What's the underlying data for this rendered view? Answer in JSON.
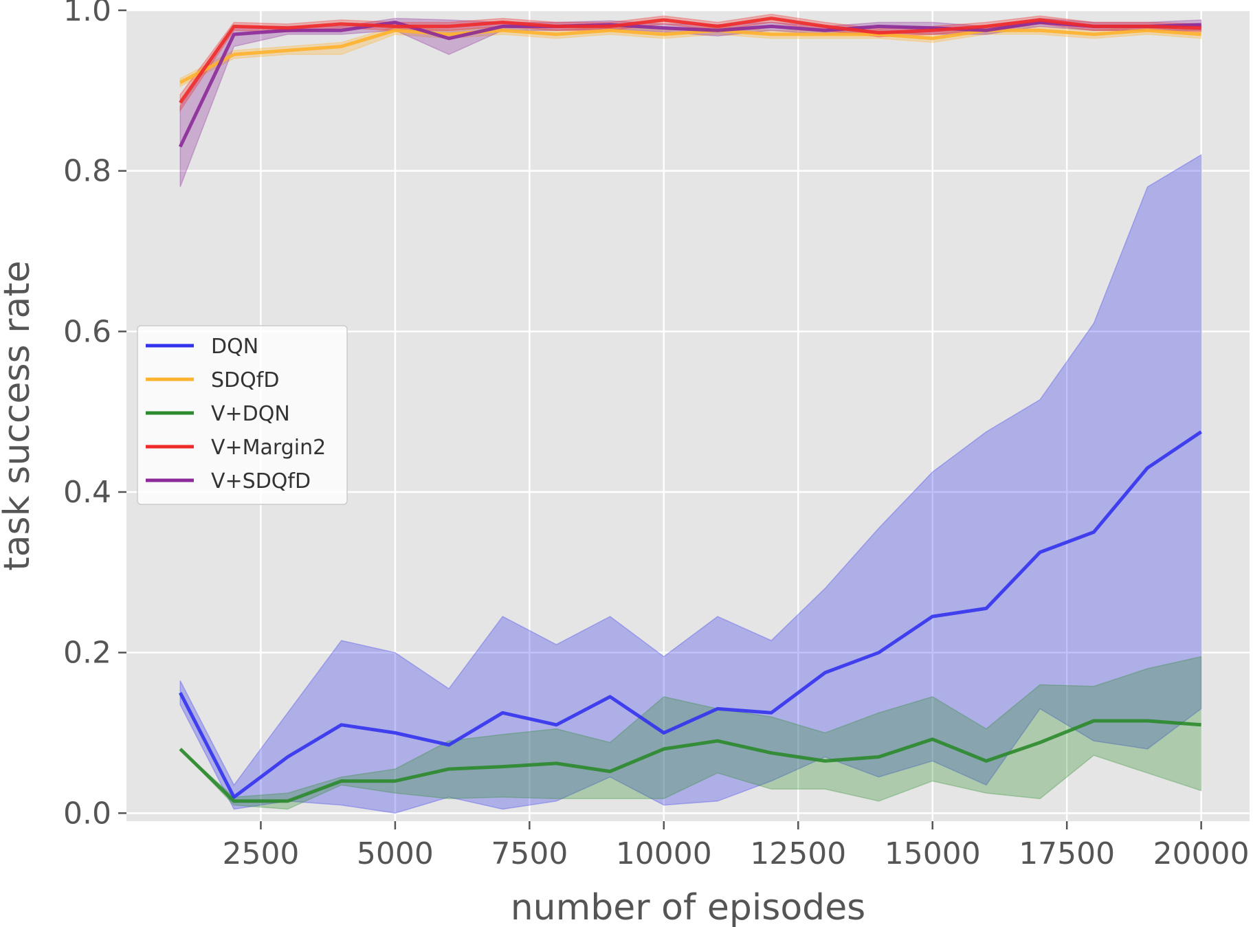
{
  "chart_data": {
    "type": "line",
    "title": "",
    "xlabel": "number of episodes",
    "ylabel": "task success rate",
    "xlim": [
      0,
      20900
    ],
    "ylim": [
      -0.01,
      1.0
    ],
    "grid": true,
    "background": "#e5e5e5",
    "legend_position": "center-left",
    "xticks": [
      2500,
      5000,
      7500,
      10000,
      12500,
      15000,
      17500,
      20000
    ],
    "xtick_labels": [
      "2500",
      "5000",
      "7500",
      "10000",
      "12500",
      "15000",
      "17500",
      "20000"
    ],
    "yticks": [
      0.0,
      0.2,
      0.4,
      0.6,
      0.8,
      1.0
    ],
    "ytick_labels": [
      "0.0",
      "0.2",
      "0.4",
      "0.6",
      "0.8",
      "1.0"
    ],
    "x": [
      1000,
      2000,
      3000,
      4000,
      5000,
      6000,
      7000,
      8000,
      9000,
      10000,
      11000,
      12000,
      13000,
      14000,
      15000,
      16000,
      17000,
      18000,
      19000,
      20000
    ],
    "series": [
      {
        "name": "DQN",
        "color": "#3333ee",
        "values": [
          0.15,
          0.02,
          0.07,
          0.11,
          0.1,
          0.085,
          0.125,
          0.11,
          0.145,
          0.1,
          0.13,
          0.125,
          0.175,
          0.2,
          0.245,
          0.255,
          0.325,
          0.35,
          0.43,
          0.475
        ],
        "lower": [
          0.135,
          0.005,
          0.015,
          0.01,
          0.0,
          0.02,
          0.005,
          0.015,
          0.045,
          0.01,
          0.015,
          0.04,
          0.07,
          0.045,
          0.065,
          0.035,
          0.13,
          0.09,
          0.08,
          0.13
        ],
        "upper": [
          0.165,
          0.035,
          0.125,
          0.215,
          0.2,
          0.155,
          0.245,
          0.21,
          0.245,
          0.195,
          0.245,
          0.215,
          0.28,
          0.355,
          0.425,
          0.475,
          0.515,
          0.61,
          0.78,
          0.82
        ]
      },
      {
        "name": "SDQfD",
        "color": "#ffb22e",
        "values": [
          0.91,
          0.945,
          0.95,
          0.955,
          0.975,
          0.97,
          0.975,
          0.97,
          0.975,
          0.97,
          0.975,
          0.97,
          0.97,
          0.97,
          0.965,
          0.975,
          0.975,
          0.97,
          0.975,
          0.97
        ],
        "lower": [
          0.905,
          0.94,
          0.945,
          0.945,
          0.97,
          0.965,
          0.97,
          0.965,
          0.97,
          0.965,
          0.97,
          0.965,
          0.965,
          0.965,
          0.96,
          0.97,
          0.97,
          0.965,
          0.97,
          0.965
        ],
        "upper": [
          0.915,
          0.95,
          0.955,
          0.96,
          0.98,
          0.975,
          0.98,
          0.975,
          0.98,
          0.975,
          0.98,
          0.975,
          0.975,
          0.975,
          0.97,
          0.98,
          0.98,
          0.975,
          0.98,
          0.975
        ]
      },
      {
        "name": "V+DQN",
        "color": "#2b8a2b",
        "values": [
          0.08,
          0.015,
          0.015,
          0.04,
          0.04,
          0.055,
          0.058,
          0.062,
          0.052,
          0.08,
          0.09,
          0.075,
          0.065,
          0.07,
          0.092,
          0.065,
          0.088,
          0.115,
          0.115,
          0.11
        ],
        "lower": [
          0.08,
          0.01,
          0.005,
          0.035,
          0.025,
          0.018,
          0.02,
          0.018,
          0.018,
          0.018,
          0.05,
          0.03,
          0.03,
          0.015,
          0.04,
          0.025,
          0.018,
          0.072,
          0.05,
          0.028
        ],
        "upper": [
          0.08,
          0.02,
          0.025,
          0.045,
          0.055,
          0.09,
          0.098,
          0.105,
          0.088,
          0.145,
          0.13,
          0.12,
          0.1,
          0.125,
          0.145,
          0.105,
          0.16,
          0.158,
          0.18,
          0.195
        ]
      },
      {
        "name": "V+Margin2",
        "color": "#ee2a2a",
        "values": [
          0.885,
          0.98,
          0.978,
          0.983,
          0.98,
          0.98,
          0.985,
          0.98,
          0.98,
          0.988,
          0.98,
          0.99,
          0.98,
          0.972,
          0.975,
          0.98,
          0.988,
          0.98,
          0.98,
          0.978
        ],
        "lower": [
          0.875,
          0.975,
          0.973,
          0.978,
          0.975,
          0.975,
          0.98,
          0.975,
          0.975,
          0.983,
          0.975,
          0.985,
          0.975,
          0.967,
          0.97,
          0.975,
          0.983,
          0.975,
          0.975,
          0.973
        ],
        "upper": [
          0.895,
          0.985,
          0.983,
          0.988,
          0.985,
          0.985,
          0.99,
          0.985,
          0.985,
          0.993,
          0.985,
          0.995,
          0.985,
          0.977,
          0.98,
          0.985,
          0.993,
          0.985,
          0.985,
          0.983
        ]
      },
      {
        "name": "V+SDQfD",
        "color": "#8b2a98",
        "values": [
          0.83,
          0.97,
          0.975,
          0.975,
          0.985,
          0.965,
          0.98,
          0.98,
          0.982,
          0.978,
          0.975,
          0.98,
          0.975,
          0.98,
          0.978,
          0.975,
          0.985,
          0.98,
          0.98,
          0.982
        ],
        "lower": [
          0.78,
          0.955,
          0.97,
          0.97,
          0.975,
          0.945,
          0.975,
          0.975,
          0.977,
          0.973,
          0.968,
          0.975,
          0.97,
          0.972,
          0.97,
          0.97,
          0.98,
          0.975,
          0.975,
          0.975
        ],
        "upper": [
          0.88,
          0.98,
          0.98,
          0.98,
          0.99,
          0.988,
          0.985,
          0.985,
          0.987,
          0.983,
          0.982,
          0.985,
          0.98,
          0.985,
          0.985,
          0.98,
          0.99,
          0.985,
          0.985,
          0.988
        ]
      }
    ]
  }
}
